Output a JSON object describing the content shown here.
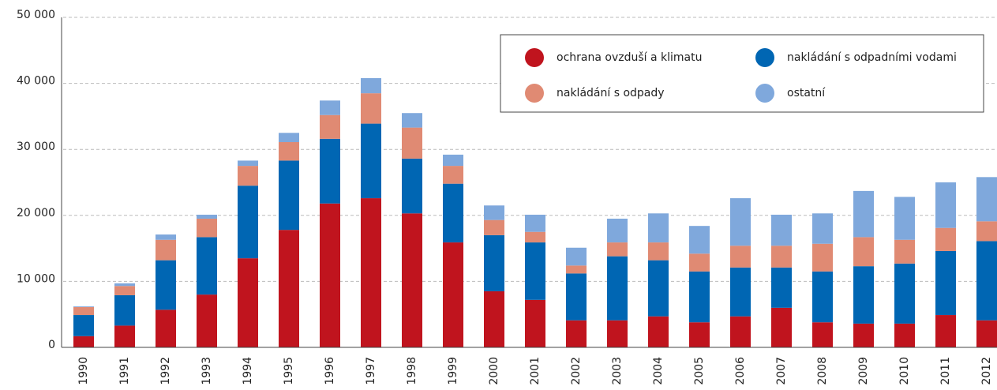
{
  "chart_data": {
    "type": "stacked_bar",
    "categories": [
      "1990",
      "1991",
      "1992",
      "1993",
      "1994",
      "1995",
      "1996",
      "1997",
      "1998",
      "1999",
      "2000",
      "2001",
      "2002",
      "2003",
      "2004",
      "2005",
      "2006",
      "2007",
      "2008",
      "2009",
      "2010",
      "2011",
      "2012"
    ],
    "series": [
      {
        "name": "ochrana ovzduší a klimatu",
        "color": "#c0141e",
        "values": [
          1700,
          3300,
          5700,
          8000,
          13500,
          17800,
          21800,
          22600,
          20300,
          15900,
          8500,
          7200,
          4100,
          4100,
          4700,
          3800,
          4700,
          6000,
          3800,
          3600,
          3600,
          4900,
          4100
        ]
      },
      {
        "name": "nakládání s odpadními vodami",
        "color": "#0066b3",
        "values": [
          3200,
          4600,
          7500,
          8700,
          11000,
          10500,
          9800,
          11300,
          8300,
          8900,
          8500,
          8700,
          7100,
          9700,
          8500,
          7700,
          7400,
          6100,
          7700,
          8700,
          9100,
          9700,
          12000
        ]
      },
      {
        "name": "nakládání s odpady",
        "color": "#e08a73",
        "values": [
          1200,
          1400,
          3100,
          2800,
          3000,
          2800,
          3600,
          4600,
          4700,
          2700,
          2300,
          1600,
          1200,
          2100,
          2700,
          2700,
          3300,
          3300,
          4200,
          4400,
          3600,
          3500,
          3000
        ]
      },
      {
        "name": "ostatní",
        "color": "#7fa8dc",
        "values": [
          100,
          400,
          800,
          600,
          800,
          1400,
          2200,
          2300,
          2200,
          1700,
          2200,
          2600,
          2700,
          3600,
          4400,
          4200,
          7200,
          4700,
          4600,
          7000,
          6500,
          6900,
          6700
        ]
      }
    ],
    "ylim": [
      0,
      50000
    ],
    "yticks": [
      0,
      {
        "value": 10000,
        "label": "10 000"
      },
      {
        "value": 20000,
        "label": "20 000"
      },
      {
        "value": 30000,
        "label": "30 000"
      },
      {
        "value": 40000,
        "label": "40 000"
      },
      {
        "value": 50000,
        "label": "50 000"
      }
    ],
    "grid": true,
    "legend": "upper right"
  }
}
